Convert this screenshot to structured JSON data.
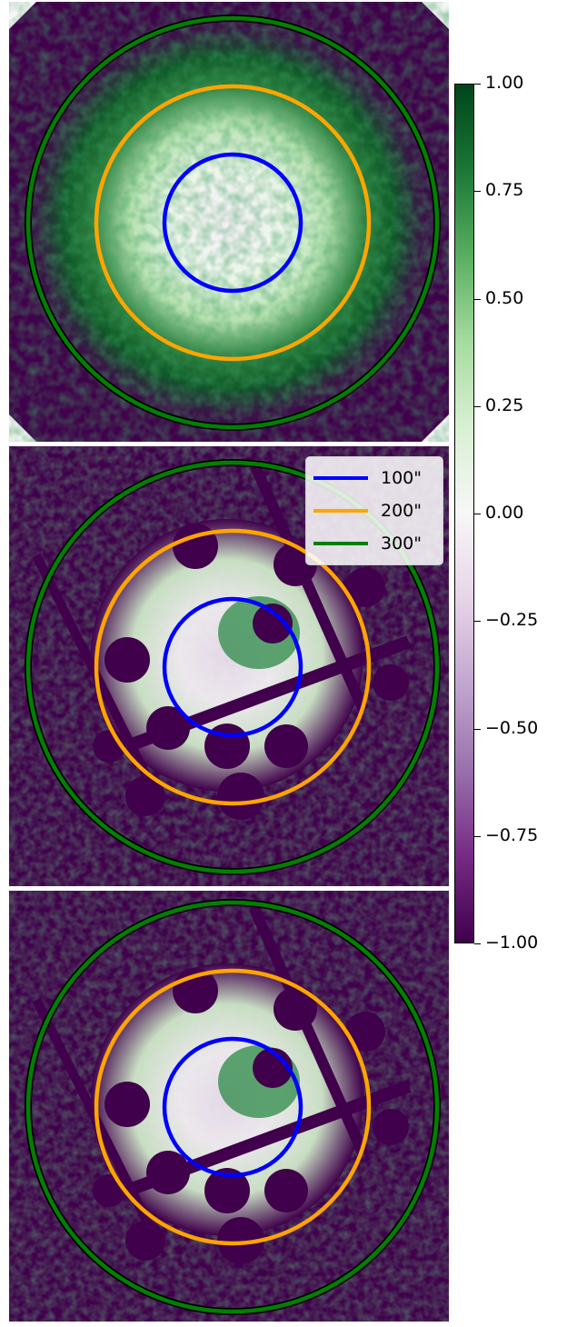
{
  "colormap": {
    "name": "PRGn",
    "colors": [
      "#40004b",
      "#762a83",
      "#9970ab",
      "#c2a5cf",
      "#e7d4e8",
      "#f7f7f7",
      "#d9f0d3",
      "#a6dba0",
      "#5aae61",
      "#1b7837",
      "#00441b"
    ]
  },
  "colorbar": {
    "min": -1.0,
    "max": 1.0,
    "ticks": [
      "1.00",
      "0.75",
      "0.50",
      "0.25",
      "0.00",
      "−0.25",
      "−0.50",
      "−0.75",
      "−1.00"
    ]
  },
  "legend": {
    "entries": [
      {
        "label": "100\"",
        "color": "#0000ff"
      },
      {
        "label": "200\"",
        "color": "#ffa500"
      },
      {
        "label": "300\"",
        "color": "#008000"
      }
    ]
  },
  "panels": [
    {
      "name": "top",
      "rings": [
        "100\"",
        "200\"",
        "300\""
      ]
    },
    {
      "name": "middle",
      "rings": [
        "100\"",
        "200\"",
        "300\""
      ]
    },
    {
      "name": "bottom",
      "rings": [
        "100\"",
        "200\"",
        "300\""
      ]
    }
  ]
}
